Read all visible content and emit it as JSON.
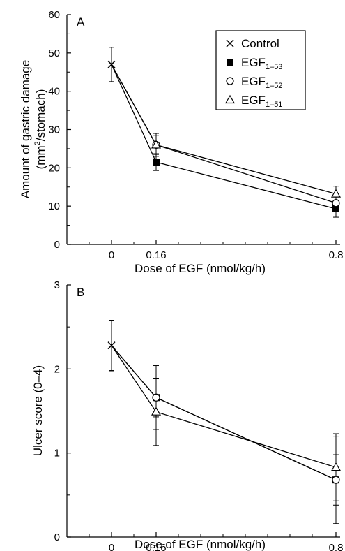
{
  "chart_data": [
    {
      "type": "line",
      "panel_label": "A",
      "xlabel": "Dose of EGF (nmol/kg/h)",
      "ylabel_line1": "Amount of gastric damage",
      "ylabel_line2_pre": "(mm",
      "ylabel_line2_sup": "2",
      "ylabel_line2_post": "/stomach)",
      "x_ticks": [
        "0",
        "0.16",
        "0.8"
      ],
      "y_ticks": [
        "0",
        "10",
        "20",
        "30",
        "40",
        "50",
        "60"
      ],
      "ylim": [
        0,
        60
      ],
      "legend_position": "top-right",
      "series": [
        {
          "name": "Control",
          "name_main": "Control",
          "name_sub": "",
          "marker": "cross",
          "x": [
            0
          ],
          "y": [
            47
          ],
          "err": [
            4.5
          ]
        },
        {
          "name": "EGF1–53",
          "name_main": "EGF",
          "name_sub": "1–53",
          "marker": "filled-square",
          "x": [
            0,
            0.16,
            0.8
          ],
          "y": [
            47,
            21.5,
            9.3
          ],
          "err": [
            4.5,
            2.2,
            2.2
          ]
        },
        {
          "name": "EGF1–52",
          "name_main": "EGF",
          "name_sub": "1–52",
          "marker": "open-circle",
          "x": [
            0,
            0.16,
            0.8
          ],
          "y": [
            47,
            26,
            10.8
          ],
          "err": [
            4.5,
            3,
            2
          ]
        },
        {
          "name": "EGF1–51",
          "name_main": "EGF",
          "name_sub": "1–51",
          "marker": "open-triangle",
          "x": [
            0,
            0.16,
            0.8
          ],
          "y": [
            47,
            26,
            13.2
          ],
          "err": [
            4.5,
            2.5,
            2
          ]
        }
      ]
    },
    {
      "type": "line",
      "panel_label": "B",
      "xlabel": "Dose of EGF (nmol/kg/h)",
      "ylabel": "Ulcer score (0–4)",
      "x_ticks": [
        "0",
        "0.16",
        "0.8"
      ],
      "y_ticks": [
        "0",
        "1",
        "2",
        "3"
      ],
      "ylim": [
        0,
        3
      ],
      "series": [
        {
          "name": "Control",
          "marker": "cross",
          "x": [
            0
          ],
          "y": [
            2.28
          ],
          "err": [
            0.3
          ]
        },
        {
          "name": "EGF1–53",
          "marker": "filled-square",
          "x": [
            0,
            0.16,
            0.8
          ],
          "y": [
            2.28,
            1.66,
            0.68
          ],
          "err": [
            0.3,
            0.23,
            0.3
          ]
        },
        {
          "name": "EGF1–52",
          "marker": "open-circle",
          "x": [
            0,
            0.16,
            0.8
          ],
          "y": [
            2.28,
            1.66,
            0.68
          ],
          "err": [
            0.3,
            0.38,
            0.52
          ]
        },
        {
          "name": "EGF1–51",
          "marker": "open-triangle",
          "x": [
            0,
            0.16,
            0.8
          ],
          "y": [
            2.28,
            1.49,
            0.83
          ],
          "err": [
            0.3,
            0.4,
            0.4
          ]
        }
      ]
    }
  ]
}
